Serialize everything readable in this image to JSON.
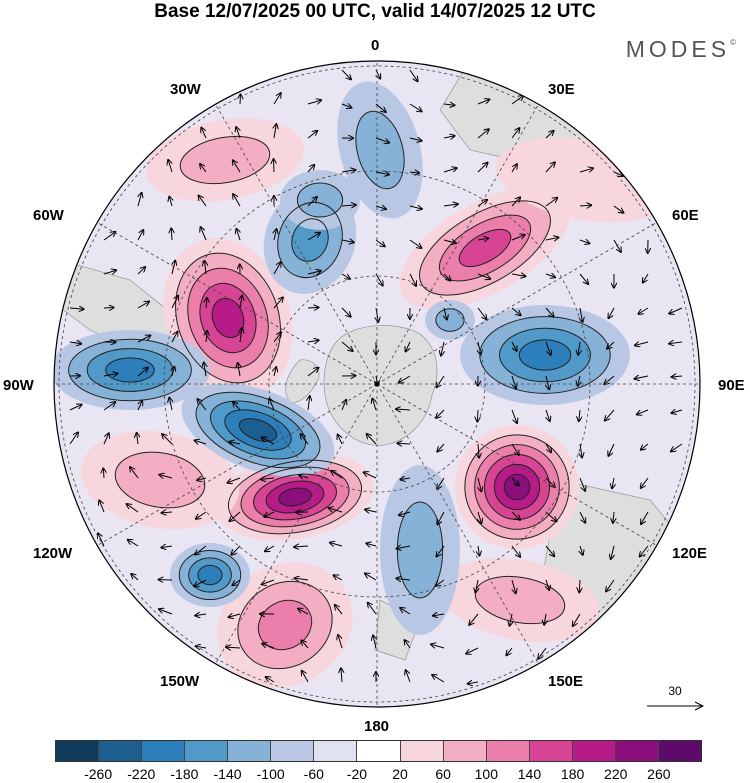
{
  "header": {
    "title": "Base 12/07/2025 00 UTC, valid 14/07/2025 12 UTC",
    "brand": "MODES",
    "brand_mark": "©"
  },
  "map": {
    "projection": "south-polar-stereographic",
    "longitude_labels": {
      "top": "0",
      "top_right": "30E",
      "right_upper": "60E",
      "right": "90E",
      "right_lower": "120E",
      "bottom_right": "150E",
      "bottom": "180",
      "bottom_left": "150W",
      "left_lower": "120W",
      "left": "90W",
      "left_upper": "60W",
      "top_left": "30W"
    }
  },
  "vector_reference": {
    "value": "30"
  },
  "colorbar": {
    "ticks": [
      "-260",
      "-220",
      "-180",
      "-140",
      "-100",
      "-60",
      "-20",
      "20",
      "60",
      "100",
      "140",
      "180",
      "220",
      "260"
    ],
    "colors": [
      "#0f3a5a",
      "#1b5e8f",
      "#2d7fbb",
      "#5099c8",
      "#86b2d8",
      "#b8c8e4",
      "#e0e1f1",
      "#ffffff",
      "#f8d6dd",
      "#f3aec3",
      "#ec7eab",
      "#d84494",
      "#b71b87",
      "#8a0f7c",
      "#5e0a6a"
    ]
  }
}
